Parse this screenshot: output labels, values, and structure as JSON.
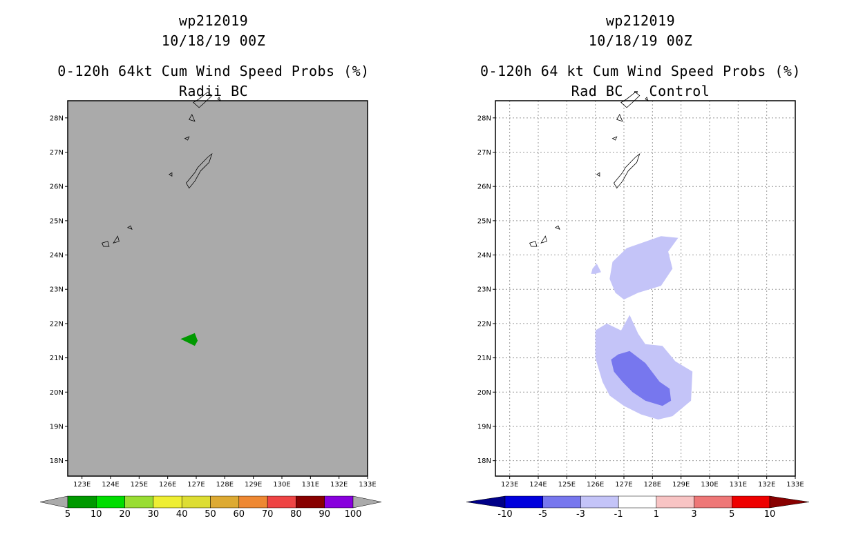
{
  "chart_data": [
    {
      "type": "map",
      "title_lines": [
        "wp212019",
        "10/18/19 00Z",
        "0-120h 64kt Cum Wind Speed Probs (%)",
        "Radii BC"
      ],
      "lon_ticks": [
        "123E",
        "124E",
        "125E",
        "126E",
        "127E",
        "128E",
        "129E",
        "130E",
        "131E",
        "132E",
        "133E"
      ],
      "lat_ticks": [
        "18N",
        "19N",
        "20N",
        "21N",
        "22N",
        "23N",
        "24N",
        "25N",
        "26N",
        "27N",
        "28N"
      ],
      "lon_range": [
        122.5,
        133.0
      ],
      "lat_range": [
        17.55,
        28.5
      ],
      "background": "#aaaaaa",
      "gridlines": false,
      "features": [
        {
          "name": "5-10% probability area",
          "color": "#009900",
          "polygon": [
            [
              126.45,
              21.55
            ],
            [
              126.95,
              21.72
            ],
            [
              127.05,
              21.5
            ],
            [
              126.95,
              21.35
            ],
            [
              126.7,
              21.45
            ]
          ]
        }
      ],
      "colorbar": {
        "labels": [
          "5",
          "10",
          "20",
          "30",
          "40",
          "50",
          "60",
          "70",
          "80",
          "90",
          "100"
        ],
        "colors": [
          "#009900",
          "#00dd00",
          "#99dd33",
          "#eeee33",
          "#dddd33",
          "#ddaa33",
          "#ee8833",
          "#ee4444",
          "#880000",
          "#8800dd"
        ],
        "left_extend_color": "#aaaaaa",
        "right_extend_color": "#aaaaaa"
      }
    },
    {
      "type": "map",
      "title_lines": [
        "wp212019",
        "10/18/19 00Z",
        "0-120h 64 kt Cum Wind Speed Probs (%)",
        "Rad BC - Control"
      ],
      "lon_ticks": [
        "123E",
        "124E",
        "125E",
        "126E",
        "127E",
        "128E",
        "129E",
        "130E",
        "131E",
        "132E",
        "133E"
      ],
      "lat_ticks": [
        "18N",
        "19N",
        "20N",
        "21N",
        "22N",
        "23N",
        "24N",
        "25N",
        "26N",
        "27N",
        "28N"
      ],
      "lon_range": [
        122.5,
        133.0
      ],
      "lat_range": [
        17.55,
        28.5
      ],
      "background": "#ffffff",
      "gridlines": true,
      "features": [
        {
          "name": "-3 to -1 north area",
          "color": "#c4c4f8",
          "polygon": [
            [
              126.6,
              23.8
            ],
            [
              127.1,
              24.2
            ],
            [
              128.3,
              24.55
            ],
            [
              128.9,
              24.5
            ],
            [
              128.55,
              24.1
            ],
            [
              128.7,
              23.6
            ],
            [
              128.3,
              23.1
            ],
            [
              127.5,
              22.9
            ],
            [
              127.0,
              22.7
            ],
            [
              126.7,
              22.9
            ],
            [
              126.5,
              23.3
            ]
          ]
        },
        {
          "name": "-3 to -1 small west area",
          "color": "#c4c4f8",
          "polygon": [
            [
              125.9,
              23.6
            ],
            [
              126.05,
              23.75
            ],
            [
              126.2,
              23.5
            ],
            [
              126.0,
              23.45
            ],
            [
              125.85,
              23.45
            ]
          ]
        },
        {
          "name": "-3 to -1 south area",
          "color": "#c4c4f8",
          "polygon": [
            [
              126.0,
              21.8
            ],
            [
              126.4,
              22.0
            ],
            [
              126.9,
              21.8
            ],
            [
              127.2,
              22.25
            ],
            [
              127.5,
              21.7
            ],
            [
              127.75,
              21.4
            ],
            [
              128.35,
              21.35
            ],
            [
              128.8,
              20.9
            ],
            [
              129.4,
              20.6
            ],
            [
              129.35,
              19.75
            ],
            [
              128.7,
              19.3
            ],
            [
              128.2,
              19.2
            ],
            [
              127.6,
              19.35
            ],
            [
              127.0,
              19.6
            ],
            [
              126.5,
              19.9
            ],
            [
              126.25,
              20.3
            ],
            [
              126.0,
              21.0
            ]
          ]
        },
        {
          "name": "-5 to -3 core area",
          "color": "#7777ee",
          "polygon": [
            [
              126.55,
              20.95
            ],
            [
              126.8,
              21.1
            ],
            [
              127.2,
              21.2
            ],
            [
              127.75,
              20.85
            ],
            [
              128.25,
              20.3
            ],
            [
              128.6,
              20.1
            ],
            [
              128.65,
              19.75
            ],
            [
              128.35,
              19.6
            ],
            [
              127.75,
              19.75
            ],
            [
              127.3,
              20.0
            ],
            [
              126.95,
              20.3
            ],
            [
              126.65,
              20.6
            ]
          ]
        }
      ],
      "colorbar": {
        "labels": [
          "-10",
          "-5",
          "-3",
          "-1",
          "1",
          "3",
          "5",
          "10"
        ],
        "colors": [
          "#0000dd",
          "#7777ee",
          "#c4c4f8",
          "#ffffff",
          "#f8c4c4",
          "#ee7777",
          "#ee0000"
        ],
        "left_extend_color": "#000088",
        "right_extend_color": "#880000"
      }
    }
  ]
}
